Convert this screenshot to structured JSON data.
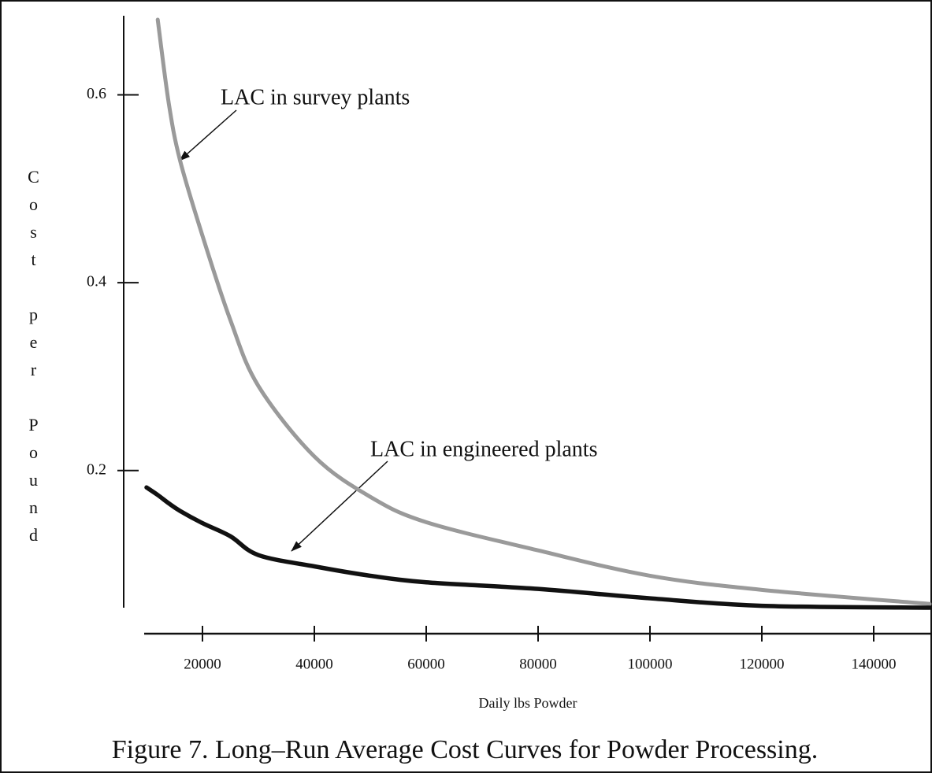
{
  "chart_data": {
    "type": "line",
    "title": "Figure 7.  Long–Run Average Cost Curves for Powder Processing.",
    "xlabel": "Daily lbs Powder",
    "ylabel": "Cost per Pound",
    "x": [
      10000,
      12000,
      14000,
      16000,
      20000,
      25000,
      30000,
      40000,
      50000,
      60000,
      80000,
      100000,
      120000,
      150000
    ],
    "series": [
      {
        "name": "LAC in survey plants",
        "color": "#9a9a9a",
        "values": [
          null,
          0.68,
          0.59,
          0.53,
          0.45,
          0.36,
          0.29,
          0.215,
          0.172,
          0.145,
          0.115,
          0.088,
          0.073,
          0.058
        ]
      },
      {
        "name": "LAC in engineered plants",
        "color": "#111111",
        "values": [
          0.182,
          0.174,
          0.165,
          0.157,
          0.144,
          0.13,
          0.11,
          0.098,
          0.088,
          0.081,
          0.074,
          0.064,
          0.056,
          0.054
        ]
      }
    ],
    "xlim": [
      10000,
      150000
    ],
    "ylim": [
      0.054,
      0.68
    ],
    "xticks": [
      20000,
      40000,
      60000,
      80000,
      100000,
      120000,
      140000
    ],
    "yticks": [
      0.2,
      0.4,
      0.6
    ],
    "grid": false
  }
}
